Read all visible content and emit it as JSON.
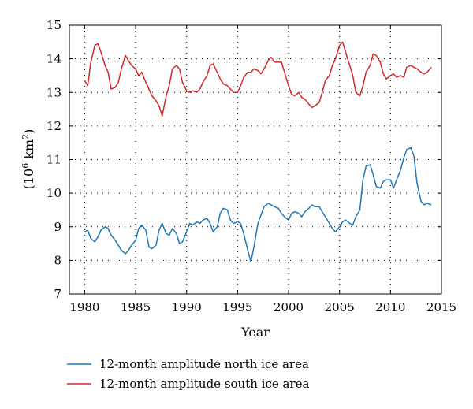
{
  "chart_data": {
    "type": "line",
    "title": "",
    "xlabel": "Year",
    "ylabel": {
      "prefix": "(10",
      "sup1": "6",
      "mid": " km",
      "sup2": "2",
      "suffix": ")"
    },
    "xlim": [
      1978.5,
      2015
    ],
    "ylim": [
      7,
      15
    ],
    "xticks": [
      1980,
      1985,
      1990,
      1995,
      2000,
      2005,
      2010,
      2015
    ],
    "yticks": [
      7,
      8,
      9,
      10,
      11,
      12,
      13,
      14,
      15
    ],
    "grid": true,
    "legend_position": "bottom",
    "series": [
      {
        "name": "12-month amplitude north ice area",
        "color": "#1f77b4",
        "x": [
          1980.0,
          1980.3,
          1980.6,
          1981.0,
          1981.3,
          1981.6,
          1982.0,
          1982.3,
          1982.6,
          1983.0,
          1983.3,
          1983.6,
          1984.0,
          1984.3,
          1984.6,
          1985.0,
          1985.3,
          1985.6,
          1986.0,
          1986.3,
          1986.6,
          1987.0,
          1987.3,
          1987.6,
          1988.0,
          1988.3,
          1988.6,
          1989.0,
          1989.3,
          1989.6,
          1990.0,
          1990.3,
          1990.6,
          1991.0,
          1991.3,
          1991.6,
          1992.0,
          1992.3,
          1992.6,
          1993.0,
          1993.3,
          1993.6,
          1994.0,
          1994.3,
          1994.6,
          1995.0,
          1995.3,
          1995.6,
          1996.0,
          1996.3,
          1996.6,
          1997.0,
          1997.3,
          1997.6,
          1998.0,
          1998.3,
          1998.6,
          1999.0,
          1999.3,
          1999.6,
          2000.0,
          2000.3,
          2000.6,
          2001.0,
          2001.3,
          2001.6,
          2002.0,
          2002.3,
          2002.6,
          2003.0,
          2003.3,
          2003.6,
          2004.0,
          2004.3,
          2004.6,
          2005.0,
          2005.3,
          2005.6,
          2006.0,
          2006.3,
          2006.6,
          2007.0,
          2007.3,
          2007.6,
          2008.0,
          2008.3,
          2008.6,
          2009.0,
          2009.3,
          2009.6,
          2010.0,
          2010.3,
          2010.6,
          2011.0,
          2011.3,
          2011.6,
          2012.0,
          2012.3,
          2012.6,
          2013.0,
          2013.3,
          2013.6,
          2014.0
        ],
        "y": [
          8.85,
          8.9,
          8.65,
          8.55,
          8.7,
          8.9,
          9.0,
          8.95,
          8.75,
          8.6,
          8.45,
          8.3,
          8.2,
          8.3,
          8.45,
          8.6,
          8.95,
          9.05,
          8.9,
          8.4,
          8.35,
          8.45,
          8.9,
          9.1,
          8.8,
          8.75,
          8.95,
          8.8,
          8.5,
          8.55,
          8.85,
          9.1,
          9.05,
          9.15,
          9.1,
          9.2,
          9.25,
          9.1,
          8.85,
          9.0,
          9.4,
          9.55,
          9.5,
          9.2,
          9.1,
          9.15,
          9.1,
          8.8,
          8.3,
          7.95,
          8.4,
          9.1,
          9.35,
          9.6,
          9.7,
          9.65,
          9.6,
          9.55,
          9.4,
          9.3,
          9.2,
          9.4,
          9.45,
          9.4,
          9.3,
          9.45,
          9.55,
          9.65,
          9.6,
          9.6,
          9.45,
          9.3,
          9.1,
          8.95,
          8.85,
          9.0,
          9.15,
          9.2,
          9.1,
          9.05,
          9.3,
          9.5,
          10.4,
          10.8,
          10.85,
          10.55,
          10.2,
          10.15,
          10.35,
          10.4,
          10.4,
          10.15,
          10.4,
          10.7,
          11.05,
          11.3,
          11.35,
          11.1,
          10.3,
          9.75,
          9.65,
          9.7,
          9.65
        ],
        "_note": ""
      },
      {
        "name": "12-month amplitude south ice area",
        "color": "#d62728",
        "x": [
          1980.0,
          1980.3,
          1980.6,
          1981.0,
          1981.3,
          1981.6,
          1982.0,
          1982.3,
          1982.6,
          1983.0,
          1983.3,
          1983.6,
          1984.0,
          1984.3,
          1984.6,
          1985.0,
          1985.3,
          1985.6,
          1986.0,
          1986.3,
          1986.6,
          1987.0,
          1987.3,
          1987.6,
          1988.0,
          1988.3,
          1988.6,
          1989.0,
          1989.3,
          1989.6,
          1990.0,
          1990.3,
          1990.6,
          1991.0,
          1991.3,
          1991.6,
          1992.0,
          1992.3,
          1992.6,
          1993.0,
          1993.3,
          1993.6,
          1994.0,
          1994.3,
          1994.6,
          1995.0,
          1995.3,
          1995.6,
          1996.0,
          1996.3,
          1996.6,
          1997.0,
          1997.3,
          1997.6,
          1998.0,
          1998.3,
          1998.6,
          1999.0,
          1999.3,
          1999.6,
          2000.0,
          2000.3,
          2000.6,
          2001.0,
          2001.3,
          2001.6,
          2002.0,
          2002.3,
          2002.6,
          2003.0,
          2003.3,
          2003.6,
          2004.0,
          2004.3,
          2004.6,
          2005.0,
          2005.3,
          2005.6,
          2006.0,
          2006.3,
          2006.6,
          2007.0,
          2007.3,
          2007.6,
          2008.0,
          2008.3,
          2008.6,
          2009.0,
          2009.3,
          2009.6,
          2010.0,
          2010.3,
          2010.6,
          2011.0,
          2011.3,
          2011.6,
          2012.0,
          2012.3,
          2012.6,
          2013.0,
          2013.3,
          2013.6,
          2014.0
        ],
        "y": [
          13.35,
          13.2,
          13.9,
          14.4,
          14.45,
          14.2,
          13.8,
          13.6,
          13.1,
          13.15,
          13.3,
          13.7,
          14.1,
          13.95,
          13.8,
          13.7,
          13.5,
          13.6,
          13.3,
          13.1,
          12.9,
          12.75,
          12.6,
          12.3,
          12.9,
          13.2,
          13.7,
          13.8,
          13.7,
          13.3,
          13.05,
          13.0,
          13.05,
          13.0,
          13.1,
          13.3,
          13.5,
          13.8,
          13.85,
          13.6,
          13.4,
          13.25,
          13.2,
          13.1,
          13.0,
          13.0,
          13.2,
          13.45,
          13.6,
          13.6,
          13.7,
          13.65,
          13.55,
          13.7,
          13.95,
          14.05,
          13.9,
          13.9,
          13.9,
          13.6,
          13.2,
          12.95,
          12.9,
          13.0,
          12.85,
          12.8,
          12.65,
          12.55,
          12.6,
          12.7,
          13.0,
          13.35,
          13.5,
          13.8,
          14.0,
          14.4,
          14.5,
          14.2,
          13.8,
          13.5,
          13.0,
          12.9,
          13.2,
          13.6,
          13.8,
          14.15,
          14.1,
          13.9,
          13.55,
          13.4,
          13.5,
          13.55,
          13.45,
          13.5,
          13.45,
          13.75,
          13.8,
          13.75,
          13.7,
          13.6,
          13.55,
          13.6,
          13.75
        ],
        "_note": ""
      }
    ]
  }
}
